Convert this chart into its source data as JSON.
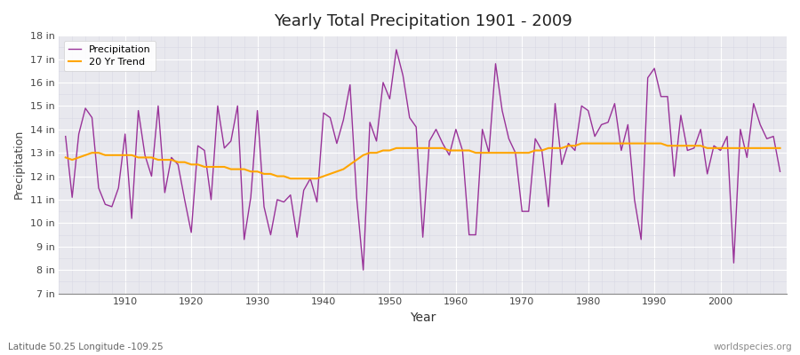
{
  "title": "Yearly Total Precipitation 1901 - 2009",
  "xlabel": "Year",
  "ylabel": "Precipitation",
  "subtitle_left": "Latitude 50.25 Longitude -109.25",
  "subtitle_right": "worldspecies.org",
  "ylim": [
    7,
    18
  ],
  "yticks": [
    7,
    8,
    9,
    10,
    11,
    12,
    13,
    14,
    15,
    16,
    17,
    18
  ],
  "ytick_labels": [
    "7 in",
    "8 in",
    "9 in",
    "10 in",
    "11 in",
    "12 in",
    "13 in",
    "14 in",
    "15 in",
    "16 in",
    "17 in",
    "18 in"
  ],
  "xlim": [
    1900,
    2010
  ],
  "precip_color": "#993399",
  "trend_color": "#FFA500",
  "bg_color": "#e8e8ee",
  "fig_color": "#ffffff",
  "grid_color": "#ffffff",
  "years": [
    1901,
    1902,
    1903,
    1904,
    1905,
    1906,
    1907,
    1908,
    1909,
    1910,
    1911,
    1912,
    1913,
    1914,
    1915,
    1916,
    1917,
    1918,
    1919,
    1920,
    1921,
    1922,
    1923,
    1924,
    1925,
    1926,
    1927,
    1928,
    1929,
    1930,
    1931,
    1932,
    1933,
    1934,
    1935,
    1936,
    1937,
    1938,
    1939,
    1940,
    1941,
    1942,
    1943,
    1944,
    1945,
    1946,
    1947,
    1948,
    1949,
    1950,
    1951,
    1952,
    1953,
    1954,
    1955,
    1956,
    1957,
    1958,
    1959,
    1960,
    1961,
    1962,
    1963,
    1964,
    1965,
    1966,
    1967,
    1968,
    1969,
    1970,
    1971,
    1972,
    1973,
    1974,
    1975,
    1976,
    1977,
    1978,
    1979,
    1980,
    1981,
    1982,
    1983,
    1984,
    1985,
    1986,
    1987,
    1988,
    1989,
    1990,
    1991,
    1992,
    1993,
    1994,
    1995,
    1996,
    1997,
    1998,
    1999,
    2000,
    2001,
    2002,
    2003,
    2004,
    2005,
    2006,
    2007,
    2008,
    2009
  ],
  "precipitation": [
    13.7,
    11.1,
    13.8,
    14.9,
    14.5,
    11.5,
    10.8,
    10.7,
    11.5,
    13.8,
    10.2,
    14.8,
    12.9,
    12.0,
    15.0,
    11.3,
    12.8,
    12.5,
    11.0,
    9.6,
    13.3,
    13.1,
    11.0,
    15.0,
    13.2,
    13.5,
    15.0,
    9.3,
    11.1,
    14.8,
    10.7,
    9.5,
    11.0,
    10.9,
    11.2,
    9.4,
    11.4,
    11.9,
    10.9,
    14.7,
    14.5,
    13.4,
    14.4,
    15.9,
    11.1,
    8.0,
    14.3,
    13.5,
    16.0,
    15.3,
    17.4,
    16.3,
    14.5,
    14.1,
    9.4,
    13.5,
    14.0,
    13.4,
    12.9,
    14.0,
    13.1,
    9.5,
    9.5,
    14.0,
    13.0,
    16.8,
    14.8,
    13.6,
    13.0,
    10.5,
    10.5,
    13.6,
    13.1,
    10.7,
    15.1,
    12.5,
    13.4,
    13.1,
    15.0,
    14.8,
    13.7,
    14.2,
    14.3,
    15.1,
    13.1,
    14.2,
    11.0,
    9.3,
    16.2,
    16.6,
    15.4,
    15.4,
    12.0,
    14.6,
    13.1,
    13.2,
    14.0,
    12.1,
    13.3,
    13.1,
    13.7,
    8.3,
    14.0,
    12.8,
    15.1,
    14.2,
    13.6,
    13.7,
    12.2
  ],
  "trend": [
    12.8,
    12.7,
    12.8,
    12.9,
    13.0,
    13.0,
    12.9,
    12.9,
    12.9,
    12.9,
    12.9,
    12.8,
    12.8,
    12.8,
    12.7,
    12.7,
    12.7,
    12.6,
    12.6,
    12.5,
    12.5,
    12.4,
    12.4,
    12.4,
    12.4,
    12.3,
    12.3,
    12.3,
    12.2,
    12.2,
    12.1,
    12.1,
    12.0,
    12.0,
    11.9,
    11.9,
    11.9,
    11.9,
    11.9,
    12.0,
    12.1,
    12.2,
    12.3,
    12.5,
    12.7,
    12.9,
    13.0,
    13.0,
    13.1,
    13.1,
    13.2,
    13.2,
    13.2,
    13.2,
    13.2,
    13.2,
    13.2,
    13.2,
    13.1,
    13.1,
    13.1,
    13.1,
    13.0,
    13.0,
    13.0,
    13.0,
    13.0,
    13.0,
    13.0,
    13.0,
    13.0,
    13.1,
    13.1,
    13.2,
    13.2,
    13.2,
    13.3,
    13.3,
    13.4,
    13.4,
    13.4,
    13.4,
    13.4,
    13.4,
    13.4,
    13.4,
    13.4,
    13.4,
    13.4,
    13.4,
    13.4,
    13.3,
    13.3,
    13.3,
    13.3,
    13.3,
    13.3,
    13.2,
    13.2,
    13.2,
    13.2,
    13.2,
    13.2,
    13.2,
    13.2,
    13.2,
    13.2,
    13.2,
    13.2
  ]
}
